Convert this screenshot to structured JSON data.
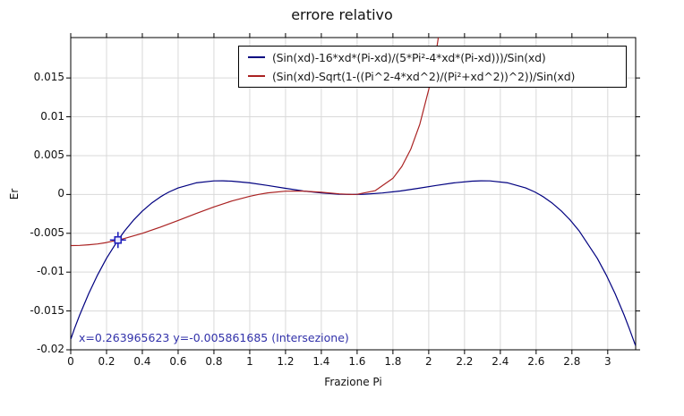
{
  "title": "errore relativo",
  "chart_data": {
    "type": "line",
    "title": "errore relativo",
    "xlabel": "Frazione Pi",
    "ylabel": "Er",
    "xlim": [
      0,
      3.156
    ],
    "ylim": [
      -0.02,
      0.0202
    ],
    "grid": true,
    "legend_position": "top-right",
    "x_ticks": [
      0,
      0.2,
      0.4,
      0.6,
      0.8,
      1,
      1.2,
      1.4,
      1.6,
      1.8,
      2,
      2.2,
      2.4,
      2.6,
      2.8,
      3
    ],
    "x_tick_labels": [
      "0",
      "0.2",
      "0.4",
      "0.6",
      "0.8",
      "1",
      "1.2",
      "1.4",
      "1.6",
      "1.8",
      "2",
      "2.2",
      "2.4",
      "2.6",
      "2.8",
      "3"
    ],
    "y_ticks": [
      -0.02,
      -0.015,
      -0.01,
      -0.005,
      0,
      0.005,
      0.01,
      0.015
    ],
    "y_tick_labels": [
      "-0.02",
      "-0.015",
      "-0.01",
      "-0.005",
      "0",
      "0.005",
      "0.01",
      "0.015"
    ],
    "series": [
      {
        "name": "(Sin(xd)-16*xd*(Pi-xd)/(5*Pi²-4*xd*(Pi-xd)))/Sin(xd)",
        "color": "#000080",
        "points": [
          [
            0.001,
            -0.018589
          ],
          [
            0.02,
            -0.017324
          ],
          [
            0.05,
            -0.015522
          ],
          [
            0.1,
            -0.012786
          ],
          [
            0.15,
            -0.010359
          ],
          [
            0.2,
            -0.008211
          ],
          [
            0.264,
            -0.005877
          ],
          [
            0.3,
            -0.004724
          ],
          [
            0.35,
            -0.003316
          ],
          [
            0.4,
            -0.002131
          ],
          [
            0.45,
            -0.001144
          ],
          [
            0.5,
            -0.000326
          ],
          [
            0.5236,
            0
          ],
          [
            0.55,
            0.000325
          ],
          [
            0.6,
            0.000838
          ],
          [
            0.7,
            0.001491
          ],
          [
            0.8,
            0.001751
          ],
          [
            0.85,
            0.001763
          ],
          [
            0.9,
            0.001715
          ],
          [
            1.0,
            0.001488
          ],
          [
            1.1,
            0.001155
          ],
          [
            1.2,
            0.000788
          ],
          [
            1.3,
            0.00045
          ],
          [
            1.4,
            0.000188
          ],
          [
            1.5,
            3.3e-05
          ],
          [
            1.5708,
            0
          ],
          [
            1.6416,
            3.3e-05
          ],
          [
            1.7416,
            0.000188
          ],
          [
            1.8416,
            0.00045
          ],
          [
            1.9416,
            0.000788
          ],
          [
            2.0416,
            0.001155
          ],
          [
            2.1416,
            0.001488
          ],
          [
            2.2416,
            0.001715
          ],
          [
            2.2916,
            0.001763
          ],
          [
            2.3416,
            0.001751
          ],
          [
            2.4416,
            0.001491
          ],
          [
            2.5416,
            0.000838
          ],
          [
            2.5916,
            0.000325
          ],
          [
            2.618,
            0
          ],
          [
            2.6416,
            -0.000326
          ],
          [
            2.6916,
            -0.001144
          ],
          [
            2.7416,
            -0.002131
          ],
          [
            2.7916,
            -0.003316
          ],
          [
            2.8416,
            -0.004724
          ],
          [
            2.9416,
            -0.008211
          ],
          [
            2.9916,
            -0.010359
          ],
          [
            3.0416,
            -0.012786
          ],
          [
            3.0916,
            -0.015522
          ],
          [
            3.1216,
            -0.017324
          ],
          [
            3.1416,
            -0.018592
          ],
          [
            3.155,
            -0.019452
          ]
        ]
      },
      {
        "name": "(Sin(xd)-Sqrt(1-((Pi^2-4*xd^2)/(Pi²+xd^2))^2))/Sin(xd)",
        "color": "#aa2222",
        "points": [
          [
            0.001,
            -0.006584
          ],
          [
            0.05,
            -0.006563
          ],
          [
            0.1,
            -0.00648
          ],
          [
            0.15,
            -0.00637
          ],
          [
            0.2,
            -0.006186
          ],
          [
            0.264,
            -0.005862
          ],
          [
            0.3,
            -0.005667
          ],
          [
            0.4,
            -0.005
          ],
          [
            0.5,
            -0.004205
          ],
          [
            0.6,
            -0.003349
          ],
          [
            0.7,
            -0.002462
          ],
          [
            0.8,
            -0.00161
          ],
          [
            0.9,
            -0.000848
          ],
          [
            1.0,
            -0.000231
          ],
          [
            1.05,
            1.3e-05
          ],
          [
            1.1,
            0.000202
          ],
          [
            1.2,
            0.000425
          ],
          [
            1.3,
            0.000435
          ],
          [
            1.4,
            0.000282
          ],
          [
            1.5,
            7.2e-05
          ],
          [
            1.5708,
            0
          ],
          [
            1.6,
            1.8e-05
          ],
          [
            1.7,
            0.000483
          ],
          [
            1.8,
            0.002085
          ],
          [
            1.85,
            0.00361
          ],
          [
            1.9,
            0.00585
          ],
          [
            1.95,
            0.009044
          ],
          [
            2.0,
            0.013514
          ],
          [
            2.03,
            0.016732
          ],
          [
            2.05,
            0.019662
          ],
          [
            2.06,
            0.021255
          ]
        ]
      }
    ],
    "marker": {
      "x": 0.263965623,
      "y": -0.005861685,
      "label": "x=0.263965623 y=-0.005861685 (Intersezione)",
      "color": "#2222bb"
    }
  },
  "colors": {
    "grid": "#d9d9d9",
    "border": "#000000",
    "annotation_text": "#3232aa"
  }
}
